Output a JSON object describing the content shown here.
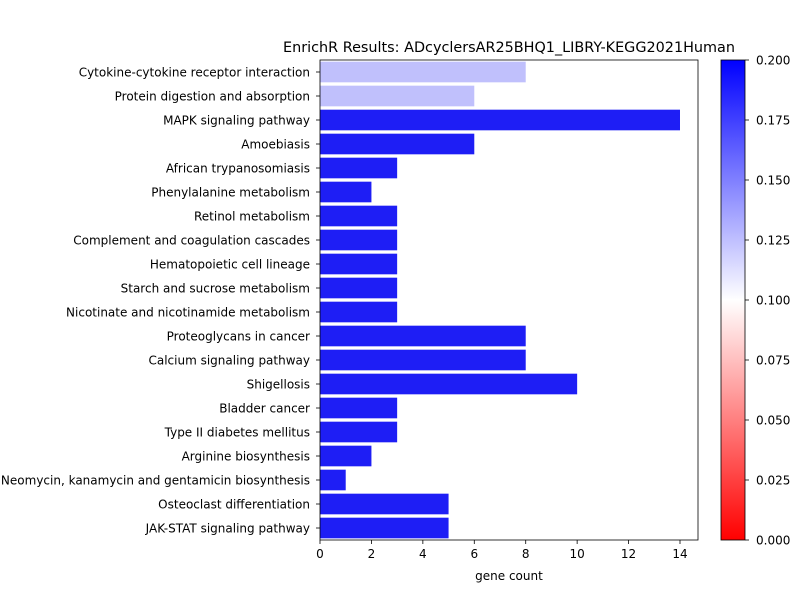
{
  "chart_data": {
    "type": "bar",
    "orientation": "horizontal",
    "title": "EnrichR Results: ADcyclersAR25BHQ1_LIBRY-KEGG2021Human",
    "xlabel": "gene count",
    "ylabel": "",
    "xlim": [
      0,
      14.7
    ],
    "x_ticks": [
      "0",
      "2",
      "4",
      "6",
      "8",
      "10",
      "12",
      "14"
    ],
    "grid": false,
    "categories": [
      "Cytokine-cytokine receptor interaction",
      "Protein digestion and absorption",
      "MAPK signaling pathway",
      "Amoebiasis",
      "African trypanosomiasis",
      "Phenylalanine metabolism",
      "Retinol metabolism",
      "Complement and coagulation cascades",
      "Hematopoietic cell lineage",
      "Starch and sucrose metabolism",
      "Nicotinate and nicotinamide metabolism",
      "Proteoglycans in cancer",
      "Calcium signaling pathway",
      "Shigellosis",
      "Bladder cancer",
      "Type II diabetes mellitus",
      "Arginine biosynthesis",
      "Neomycin, kanamycin and gentamicin biosynthesis",
      "Osteoclast differentiation",
      "JAK-STAT signaling pathway"
    ],
    "values": [
      8,
      6,
      14,
      6,
      3,
      2,
      3,
      3,
      3,
      3,
      3,
      8,
      8,
      10,
      3,
      3,
      2,
      1,
      5,
      5
    ],
    "colors": [
      "#c0c0fc",
      "#c0c0fc",
      "#1e1ef5",
      "#1e1ef5",
      "#1e1ef5",
      "#1e1ef5",
      "#1e1ef5",
      "#1e1ef5",
      "#1e1ef5",
      "#1e1ef5",
      "#1e1ef5",
      "#1e1ef5",
      "#1e1ef5",
      "#1e1ef5",
      "#1e1ef5",
      "#1e1ef5",
      "#1e1ef5",
      "#1e1ef5",
      "#1e1ef5",
      "#1e1ef5"
    ],
    "colorbar": {
      "range": [
        0.0,
        0.2
      ],
      "ticks": [
        "0.000",
        "0.025",
        "0.050",
        "0.075",
        "0.100",
        "0.125",
        "0.150",
        "0.175",
        "0.200"
      ],
      "colormap": [
        "#ff0000",
        "#ffffff",
        "#0000ff"
      ]
    }
  }
}
